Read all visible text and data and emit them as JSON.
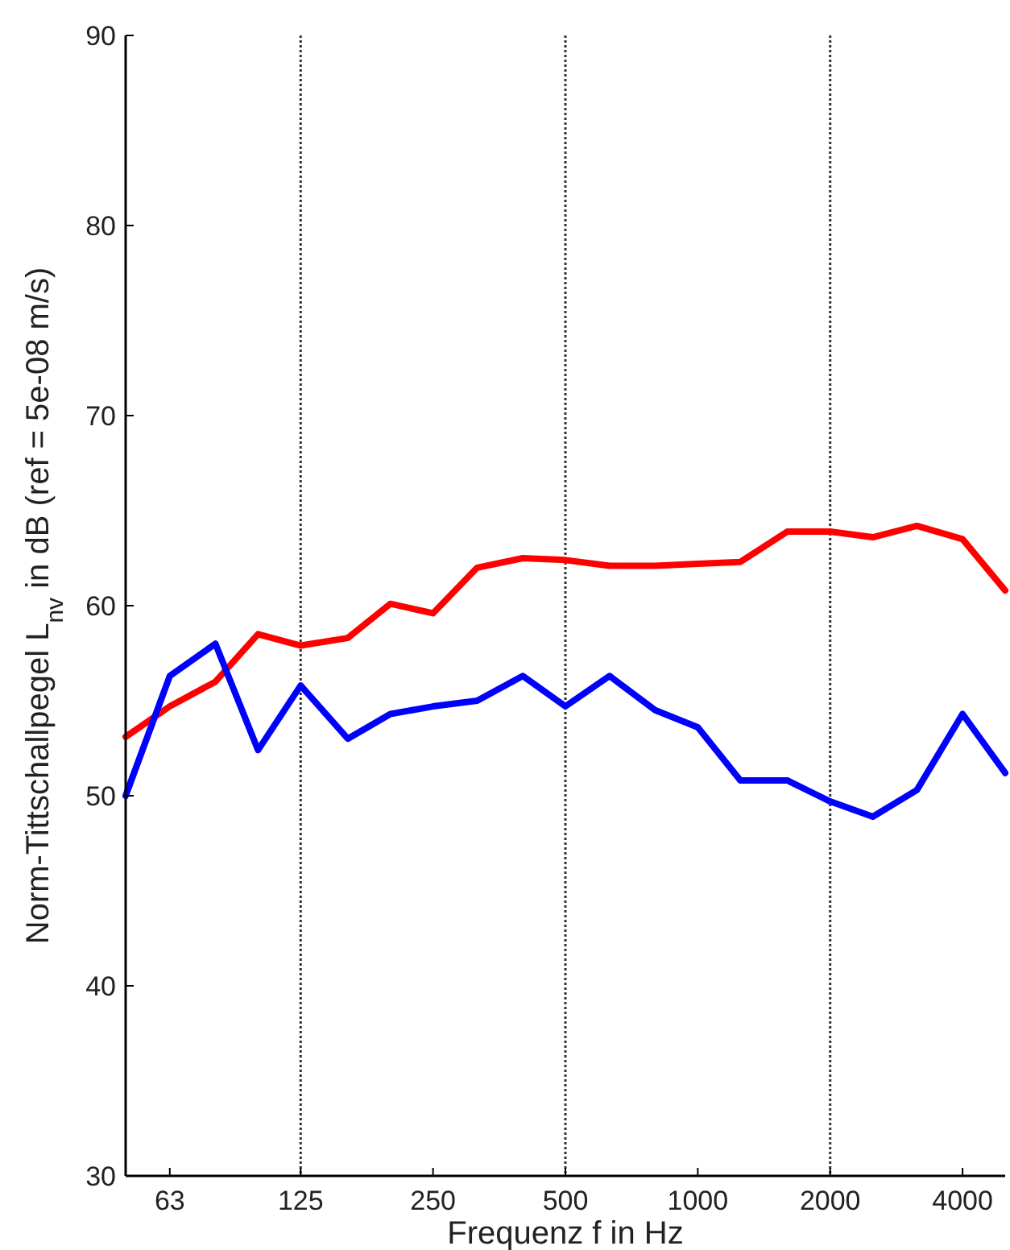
{
  "chart_data": {
    "type": "line",
    "xlabel": "Frequenz f in Hz",
    "ylabel": "Norm-Tittschallpegel  L$_{nv}$ in dB (ref = 5e-08 m/s)",
    "x": [
      50,
      63,
      80,
      100,
      125,
      160,
      200,
      250,
      315,
      400,
      500,
      630,
      800,
      1000,
      1250,
      1600,
      2000,
      2500,
      3150,
      4000,
      5000
    ],
    "series": [
      {
        "color": "#ff0000",
        "values": [
          53.1,
          54.7,
          56.0,
          58.5,
          57.9,
          58.3,
          60.1,
          59.6,
          62.0,
          62.5,
          62.4,
          62.1,
          62.1,
          62.2,
          62.3,
          63.9,
          63.9,
          63.6,
          64.2,
          63.5,
          60.8
        ]
      },
      {
        "color": "#0000ff",
        "values": [
          50.0,
          56.3,
          58.0,
          52.4,
          55.8,
          53.0,
          54.3,
          54.7,
          55.0,
          56.3,
          54.7,
          56.3,
          54.5,
          53.6,
          50.8,
          50.8,
          49.7,
          48.9,
          50.3,
          54.3,
          51.2
        ]
      }
    ],
    "log": "x",
    "xlim": [
      50,
      5000
    ],
    "xticks": [
      63,
      125,
      250,
      500,
      1000,
      2000,
      4000
    ],
    "ylim": [
      30,
      90
    ],
    "yticks": [
      30,
      40,
      50,
      60,
      70,
      80,
      90
    ],
    "ref_lines": [
      {
        "axis": "x",
        "value": 125,
        "color": "#333333",
        "line_style": "dotted"
      },
      {
        "axis": "x",
        "value": 500,
        "color": "#333333",
        "line_style": "dotted"
      },
      {
        "axis": "x",
        "value": 2000,
        "color": "#333333",
        "line_style": "dotted"
      }
    ],
    "grid": false,
    "marker": "none",
    "line_style": "solid"
  }
}
